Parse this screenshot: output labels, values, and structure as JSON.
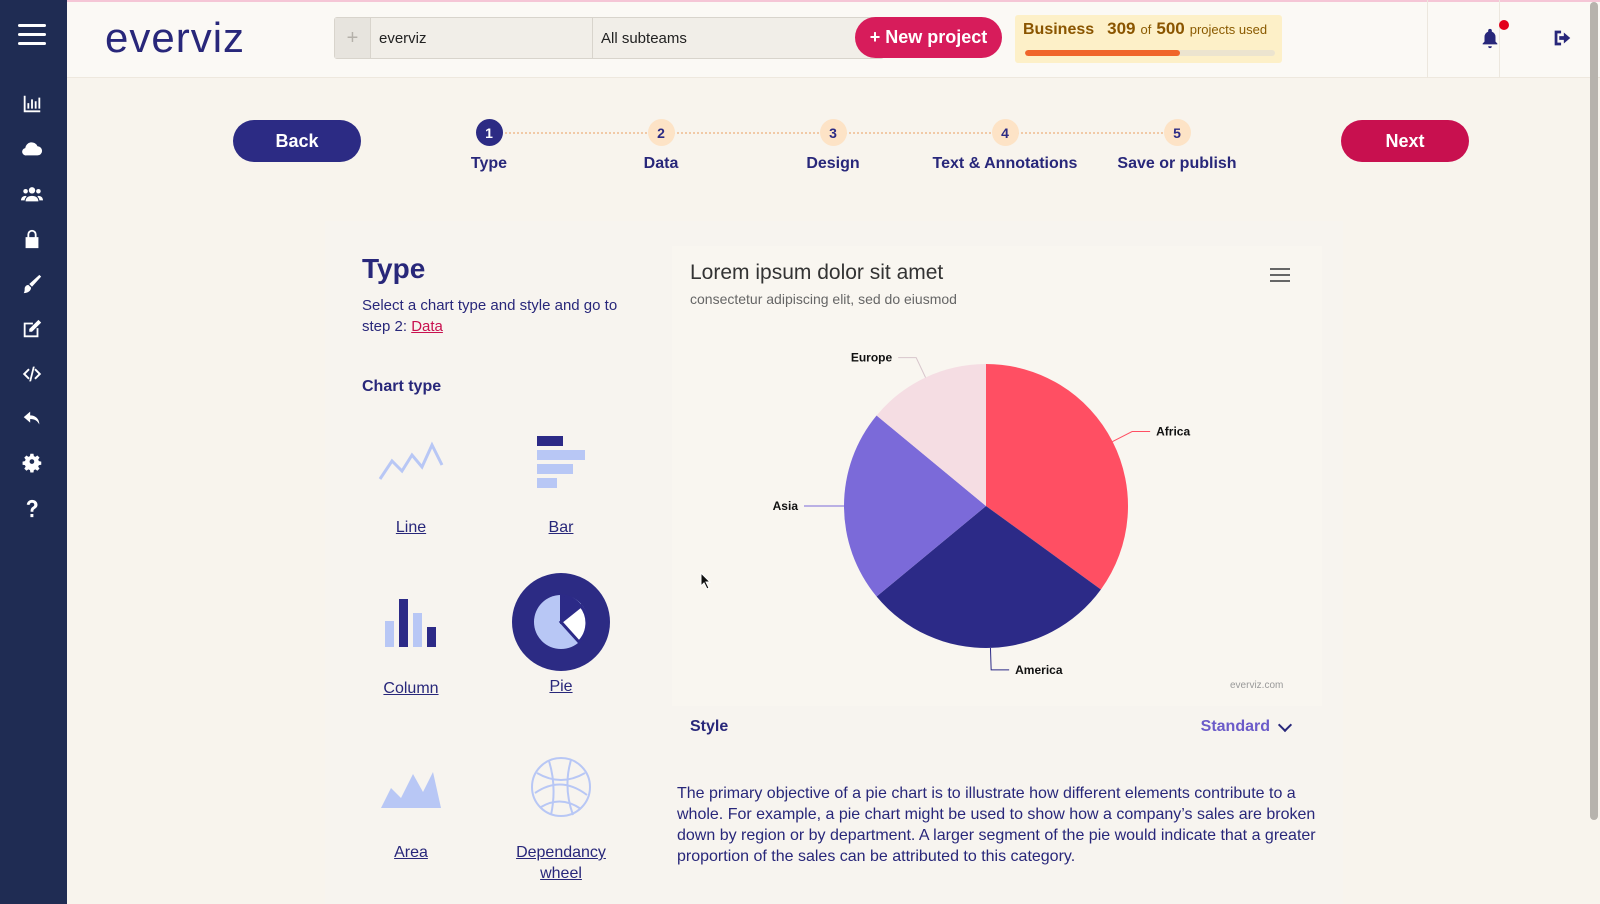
{
  "sidebar": {
    "items": [
      {
        "name": "chart-icon"
      },
      {
        "name": "cloud-icon"
      },
      {
        "name": "users-icon"
      },
      {
        "name": "lock-icon"
      },
      {
        "name": "brush-icon"
      },
      {
        "name": "edit-icon"
      },
      {
        "name": "code-icon"
      },
      {
        "name": "undo-icon"
      },
      {
        "name": "gear-icon"
      },
      {
        "name": "help-icon"
      }
    ]
  },
  "header": {
    "logo": "everviz",
    "team": "everviz",
    "subteam": "All subteams",
    "new_project": "+ New project",
    "plan": {
      "name": "Business",
      "used": "309",
      "of": "of",
      "total": "500",
      "suffix": "projects used",
      "fraction": 0.618
    }
  },
  "wizard": {
    "back": "Back",
    "next": "Next",
    "steps": [
      {
        "num": "1",
        "label": "Type"
      },
      {
        "num": "2",
        "label": "Data"
      },
      {
        "num": "3",
        "label": "Design"
      },
      {
        "num": "4",
        "label": "Text & Annotations"
      },
      {
        "num": "5",
        "label": "Save or publish"
      }
    ],
    "active_step": 1
  },
  "type_panel": {
    "title": "Type",
    "desc_prefix": "Select a chart type and style and go to step 2:",
    "desc_link": "Data",
    "chart_type_label": "Chart type",
    "types": [
      {
        "label": "Line"
      },
      {
        "label": "Bar"
      },
      {
        "label": "Column"
      },
      {
        "label": "Pie"
      },
      {
        "label": "Area"
      },
      {
        "label": "Dependancy wheel"
      }
    ],
    "selected": "Pie"
  },
  "preview": {
    "title": "Lorem ipsum dolor sit amet",
    "subtitle": "consectetur adipiscing elit, sed do eiusmod",
    "credit": "everviz.com"
  },
  "chart_data": {
    "type": "pie",
    "categories": [
      "Africa",
      "America",
      "Asia",
      "Europe"
    ],
    "values": [
      35,
      29,
      22,
      14
    ],
    "colors": [
      "#ff4f63",
      "#2c2a87",
      "#7b6ad9",
      "#f5dde3"
    ]
  },
  "style": {
    "label": "Style",
    "value": "Standard"
  },
  "description": "The primary objective of a pie chart is to illustrate how different elements contribute to a whole. For example, a pie chart might be used to show how a company’s sales are broken down by region or by department. A larger segment of the pie would indicate that a greater proportion of the sales can be attributed to this category."
}
